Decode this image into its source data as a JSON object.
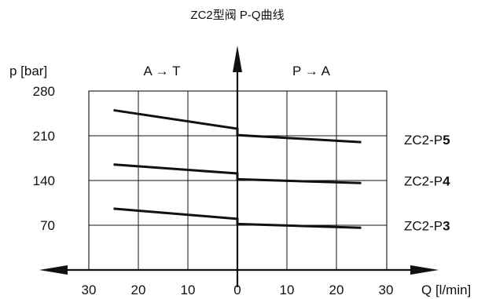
{
  "chart_data": {
    "type": "line",
    "title": "ZC2型阀 P-Q曲线",
    "ylabel": "p [bar]",
    "xlabel": "Q [l/min]",
    "left_region_label": "A → T",
    "right_region_label": "P → A",
    "xlim": [
      -31,
      31
    ],
    "ylim": [
      0,
      280
    ],
    "x_ticks": [
      -30,
      -20,
      -10,
      0,
      10,
      20,
      30
    ],
    "x_tick_labels": [
      "30",
      "20",
      "10",
      "0",
      "10",
      "20",
      "30"
    ],
    "y_ticks": [
      70,
      140,
      210,
      280
    ],
    "y_tick_labels": [
      "70",
      "140",
      "210",
      "280"
    ],
    "grid": true,
    "series": [
      {
        "name": "ZC2-P5",
        "name_prefix": "ZC2-P",
        "name_suffix": "5",
        "segments": [
          {
            "x": [
              -25,
              0
            ],
            "y": [
              250,
              221
            ]
          },
          {
            "x": [
              0,
              25
            ],
            "y": [
              211,
              200
            ]
          }
        ]
      },
      {
        "name": "ZC2-P4",
        "name_prefix": "ZC2-P",
        "name_suffix": "4",
        "segments": [
          {
            "x": [
              -25,
              0
            ],
            "y": [
              165,
              151
            ]
          },
          {
            "x": [
              0,
              25
            ],
            "y": [
              142,
              136
            ]
          }
        ]
      },
      {
        "name": "ZC2-P3",
        "name_prefix": "ZC2-P",
        "name_suffix": "3",
        "segments": [
          {
            "x": [
              -25,
              0
            ],
            "y": [
              96,
              80
            ]
          },
          {
            "x": [
              0,
              25
            ],
            "y": [
              72,
              66
            ]
          }
        ]
      }
    ],
    "colors": {
      "line": "#111111",
      "grid": "#111111",
      "background": "#ffffff"
    }
  }
}
